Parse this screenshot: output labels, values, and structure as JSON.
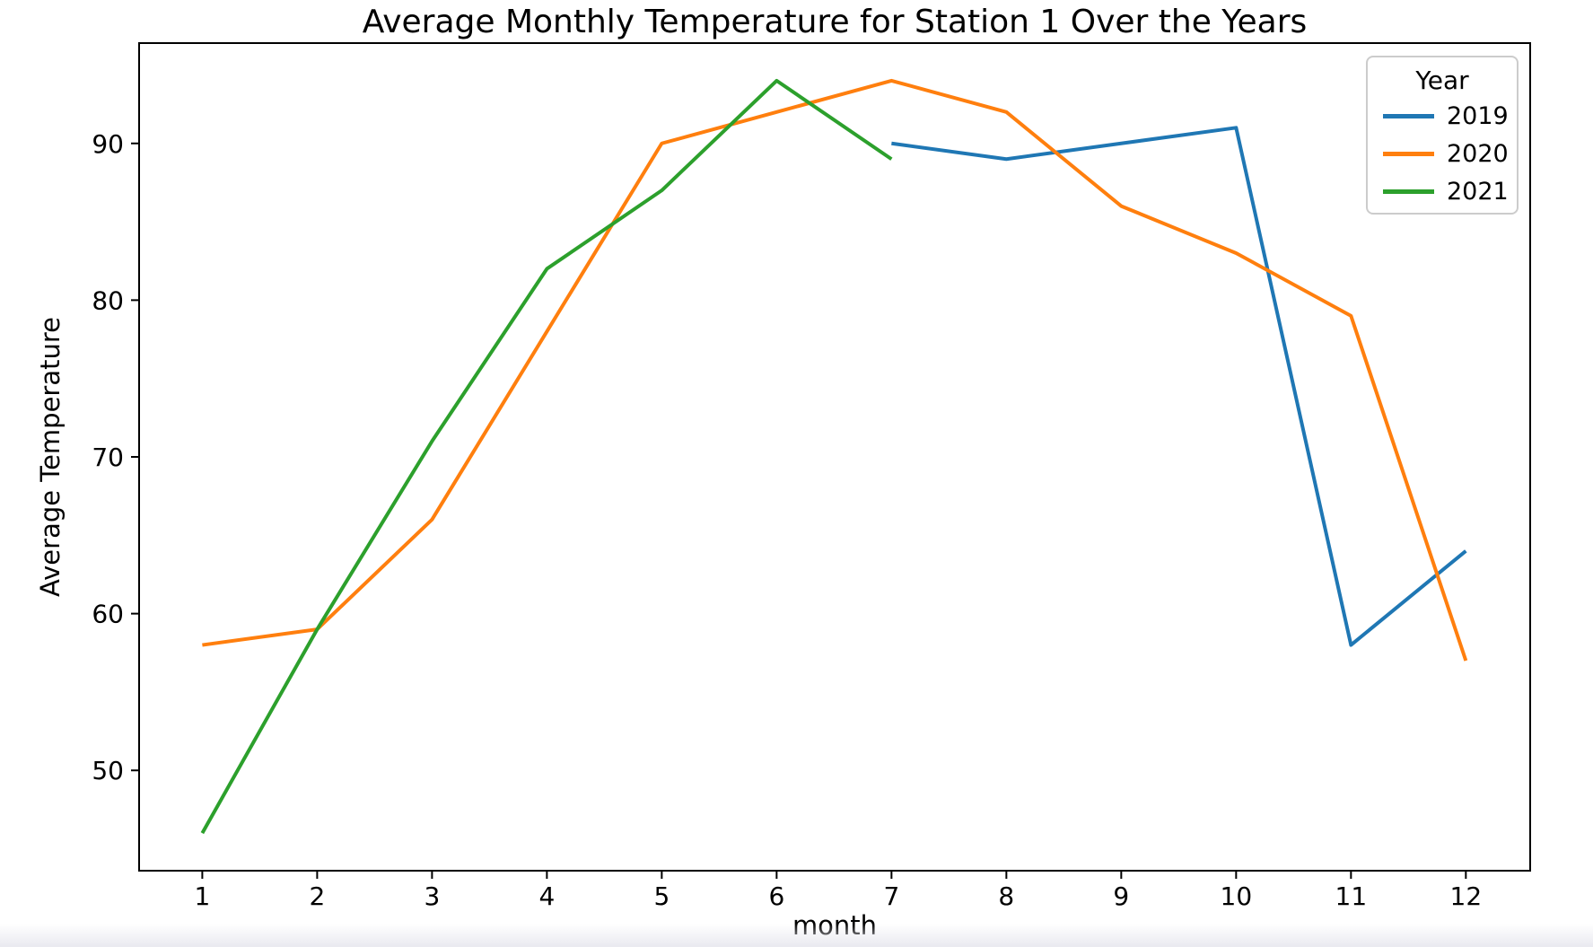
{
  "figure": {
    "background": "#ffffff",
    "text_color": "#000000",
    "spine_color": "#000000"
  },
  "chart_data": {
    "type": "line",
    "title": "Average Monthly Temperature for Station 1 Over the Years",
    "xlabel": "month",
    "ylabel": "Average Temperature",
    "x_ticks": [
      "1",
      "2",
      "3",
      "4",
      "5",
      "6",
      "7",
      "8",
      "9",
      "10",
      "11",
      "12"
    ],
    "y_ticks": [
      "50",
      "60",
      "70",
      "80",
      "90"
    ],
    "xlim": [
      0.45,
      12.56
    ],
    "ylim": [
      43.6,
      96.4
    ],
    "grid": false,
    "legend": {
      "title": "Year",
      "position": "upper right"
    },
    "series": [
      {
        "name": "2019",
        "color": "#1f77b4",
        "x": [
          7,
          8,
          9,
          10,
          11,
          12
        ],
        "values": [
          90,
          89,
          90,
          91,
          58,
          64
        ]
      },
      {
        "name": "2020",
        "color": "#ff7f0e",
        "x": [
          1,
          2,
          3,
          4,
          5,
          6,
          7,
          8,
          9,
          10,
          11,
          12
        ],
        "values": [
          58,
          59,
          66,
          78,
          90,
          92,
          94,
          92,
          86,
          83,
          79,
          57
        ]
      },
      {
        "name": "2021",
        "color": "#2ca02c",
        "x": [
          1,
          2,
          3,
          4,
          5,
          6,
          7
        ],
        "values": [
          46,
          59,
          71,
          82,
          87,
          94,
          89
        ]
      }
    ]
  }
}
